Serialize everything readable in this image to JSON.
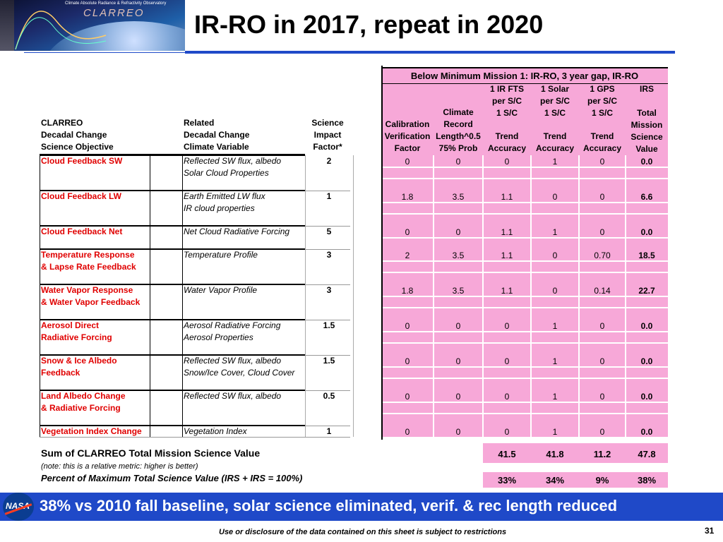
{
  "banner": {
    "subtitle": "Climate Absolute Radiance & Refractivity Observatory",
    "logo_text": "CLARREO"
  },
  "title": "IR-RO in 2017, repeat in 2020",
  "left_headers": {
    "col1": [
      "CLARREO",
      "Decadal Change",
      "Science Objective"
    ],
    "col2": [
      "Related",
      "Decadal Change",
      "Climate Variable"
    ],
    "col3": [
      "Science",
      "Impact",
      "Factor*"
    ]
  },
  "mission_header": "Below Minimum Mission 1: IR-RO, 3 year gap,  IR-RO",
  "columns": [
    [
      "Calibration",
      "Verification",
      "Factor"
    ],
    [
      "Climate",
      "Record",
      "Length^0.5",
      "75% Prob"
    ],
    [
      "1 IR FTS",
      "per S/C",
      "1 S/C",
      "Trend",
      "Accuracy"
    ],
    [
      "1 Solar",
      "per S/C",
      "1 S/C",
      "Trend",
      "Accuracy"
    ],
    [
      "1 GPS",
      "per S/C",
      "1 S/C",
      "Trend",
      "Accuracy"
    ],
    [
      "IRS",
      "Total",
      "Mission",
      "Science",
      "Value"
    ]
  ],
  "objectives": [
    {
      "obj": [
        "Cloud Feedback SW"
      ],
      "vars": [
        "Reflected SW flux, albedo",
        "Solar Cloud Properties"
      ],
      "impact": "2",
      "values": [
        "0",
        "0",
        "0",
        "1",
        "0",
        "0.0"
      ]
    },
    {
      "obj": [
        "Cloud Feedback LW"
      ],
      "vars": [
        "Earth Emitted LW flux",
        "IR cloud properties"
      ],
      "impact": "1",
      "values": [
        "1.8",
        "3.5",
        "1.1",
        "0",
        "0",
        "6.6"
      ]
    },
    {
      "obj": [
        "Cloud Feedback Net"
      ],
      "vars": [
        "Net Cloud Radiative Forcing"
      ],
      "impact": "5",
      "values": [
        "0",
        "0",
        "1.1",
        "1",
        "0",
        "0.0"
      ]
    },
    {
      "obj": [
        "Temperature Response",
        "& Lapse Rate Feedback"
      ],
      "vars": [
        "Temperature Profile"
      ],
      "impact": "3",
      "values": [
        "2",
        "3.5",
        "1.1",
        "0",
        "0.70",
        "18.5"
      ]
    },
    {
      "obj": [
        "Water Vapor Response",
        "& Water Vapor Feedback"
      ],
      "vars": [
        "Water Vapor Profile"
      ],
      "impact": "3",
      "values": [
        "1.8",
        "3.5",
        "1.1",
        "0",
        "0.14",
        "22.7"
      ]
    },
    {
      "obj": [
        "Aerosol Direct",
        "Radiative Forcing"
      ],
      "vars": [
        "Aerosol Radiative Forcing",
        "Aerosol Properties"
      ],
      "impact": "1.5",
      "values": [
        "0",
        "0",
        "0",
        "1",
        "0",
        "0.0"
      ]
    },
    {
      "obj": [
        "Snow & Ice Albedo",
        "Feedback"
      ],
      "vars": [
        "Reflected SW flux, albedo",
        "Snow/Ice Cover, Cloud Cover"
      ],
      "impact": "1.5",
      "values": [
        "0",
        "0",
        "0",
        "1",
        "0",
        "0.0"
      ]
    },
    {
      "obj": [
        "Land Albedo Change",
        "& Radiative Forcing"
      ],
      "vars": [
        "Reflected SW flux, albedo"
      ],
      "impact": "0.5",
      "values": [
        "0",
        "0",
        "0",
        "1",
        "0",
        "0.0"
      ]
    },
    {
      "obj": [
        "Vegetation Index Change"
      ],
      "vars": [
        "Vegetation Index"
      ],
      "impact": "1",
      "values": [
        "0",
        "0",
        "0",
        "1",
        "0",
        "0.0"
      ]
    }
  ],
  "summary": {
    "sum_label": "Sum of CLARREO Total Mission Science Value",
    "note": "(note: this is a relative metric: higher is better)",
    "percent_label": "Percent of Maximum Total Science Value (IRS + IRS = 100%)",
    "sum_values": [
      "41.5",
      "41.8",
      "11.2",
      "47.8"
    ],
    "percent_values": [
      "33%",
      "34%",
      "9%",
      "38%"
    ]
  },
  "bottom_message": "38% vs 2010 fall baseline, solar science eliminated, verif. & rec length reduced",
  "footer": "Use or disclosure of the data contained on this sheet is subject to restrictions",
  "page_number": "31"
}
